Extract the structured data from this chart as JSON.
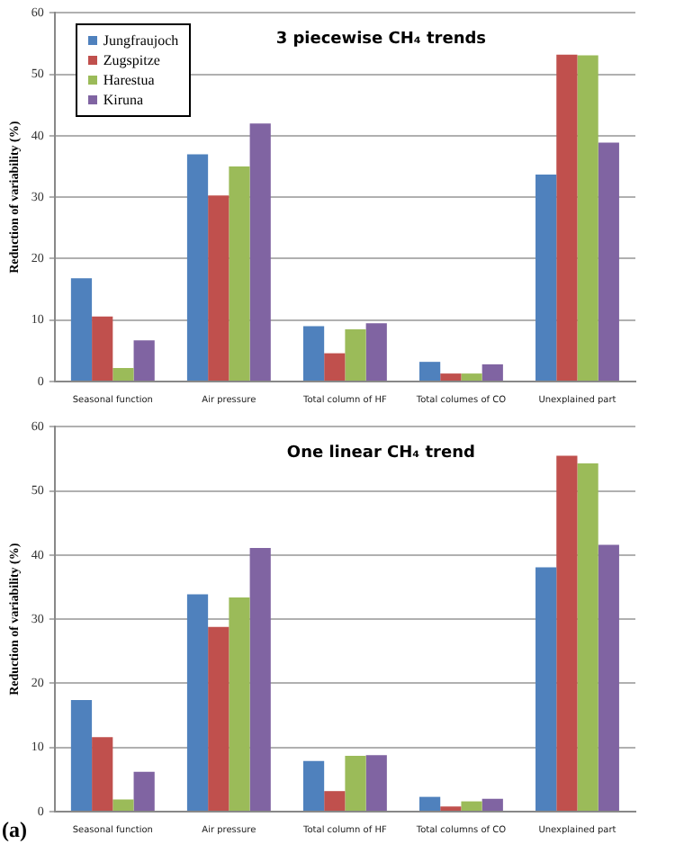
{
  "chart_data": [
    {
      "type": "bar",
      "title": "3 piecewise CH₄ trends",
      "ylabel": "Reduction of variability (%)",
      "categories": [
        "Seasonal function",
        "Air pressure",
        "Total column of HF",
        "Total columes of CO",
        "Unexplained part"
      ],
      "series": [
        {
          "name": "Jungfraujoch",
          "color": "#4f81bd",
          "values": [
            16.8,
            37,
            9,
            3.2,
            33.7
          ]
        },
        {
          "name": "Zugspitze",
          "color": "#c0504d",
          "values": [
            10.6,
            30.3,
            4.6,
            1.3,
            53.2
          ]
        },
        {
          "name": "Harestua",
          "color": "#9bbb59",
          "values": [
            2.2,
            35,
            8.5,
            1.3,
            53.1
          ]
        },
        {
          "name": "Kiruna",
          "color": "#8064a2",
          "values": [
            6.7,
            42,
            9.5,
            2.8,
            38.9
          ]
        }
      ],
      "ylim": [
        0,
        60
      ],
      "yticks": [
        0,
        10,
        20,
        30,
        40,
        50,
        60
      ],
      "grid": "y",
      "legend": "top left"
    },
    {
      "type": "bar",
      "title": "One linear CH₄ trend",
      "ylabel": "Reduction of variability (%)",
      "annotations": [
        "(a)"
      ],
      "categories": [
        "Seasonal function",
        "Air pressure",
        "Total column of HF",
        "Total columns of CO",
        "Unexplained part"
      ],
      "series": [
        {
          "color": "#4f81bd",
          "values": [
            17.4,
            33.9,
            7.9,
            2.3,
            38.1
          ]
        },
        {
          "color": "#c0504d",
          "values": [
            11.6,
            28.8,
            3.2,
            0.8,
            55.5
          ]
        },
        {
          "color": "#9bbb59",
          "values": [
            1.9,
            33.4,
            8.7,
            1.6,
            54.3
          ]
        },
        {
          "color": "#8064a2",
          "values": [
            6.2,
            41.1,
            8.8,
            2.0,
            41.6
          ]
        }
      ],
      "ylim": [
        0,
        60
      ],
      "yticks": [
        0,
        10,
        20,
        30,
        40,
        50,
        60
      ],
      "grid": "y",
      "legend": false
    }
  ]
}
